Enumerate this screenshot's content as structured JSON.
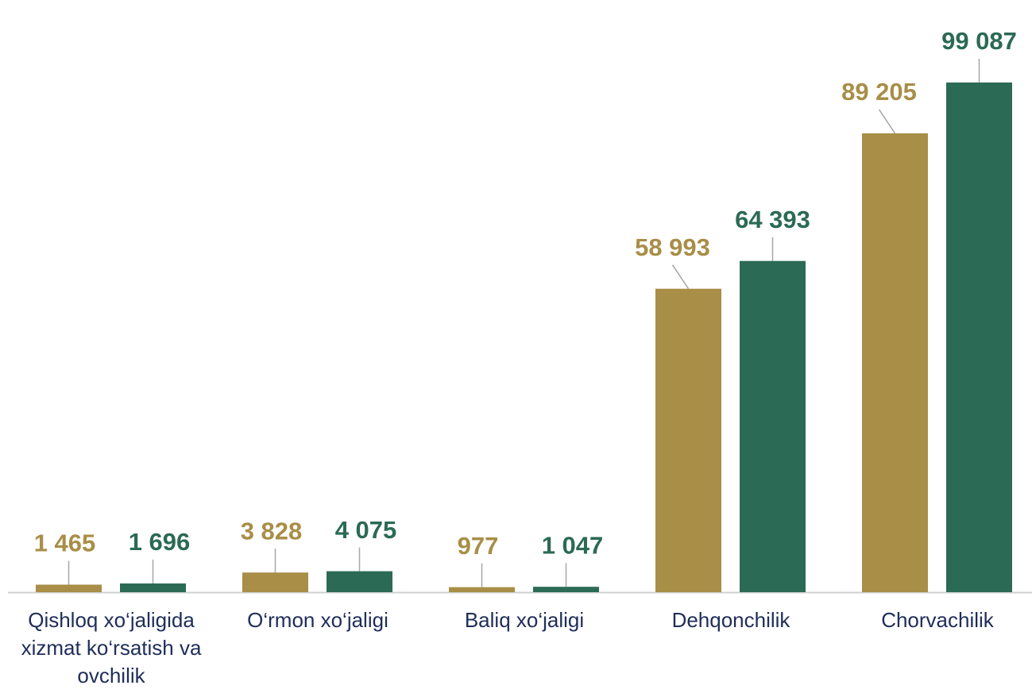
{
  "chart_data": {
    "type": "bar",
    "categories": [
      "Qishloq xo‘jaligida xizmat ko‘rsatish va ovchilik",
      "O‘rmon xo‘jaligi",
      "Baliq xo‘jaligi",
      "Dehqonchilik",
      "Chorvachilik"
    ],
    "series": [
      {
        "color": "#a88e47",
        "values": [
          1465,
          3828,
          977,
          58993,
          89205
        ],
        "value_labels": [
          "1 465",
          "3 828",
          "977",
          "58 993",
          "89 205"
        ]
      },
      {
        "color": "#2b6a55",
        "values": [
          1696,
          4075,
          1047,
          64393,
          99087
        ],
        "value_labels": [
          "1 696",
          "4 075",
          "1 047",
          "64 393",
          "99 087"
        ]
      }
    ],
    "ylim": [
      0,
      100000
    ]
  }
}
